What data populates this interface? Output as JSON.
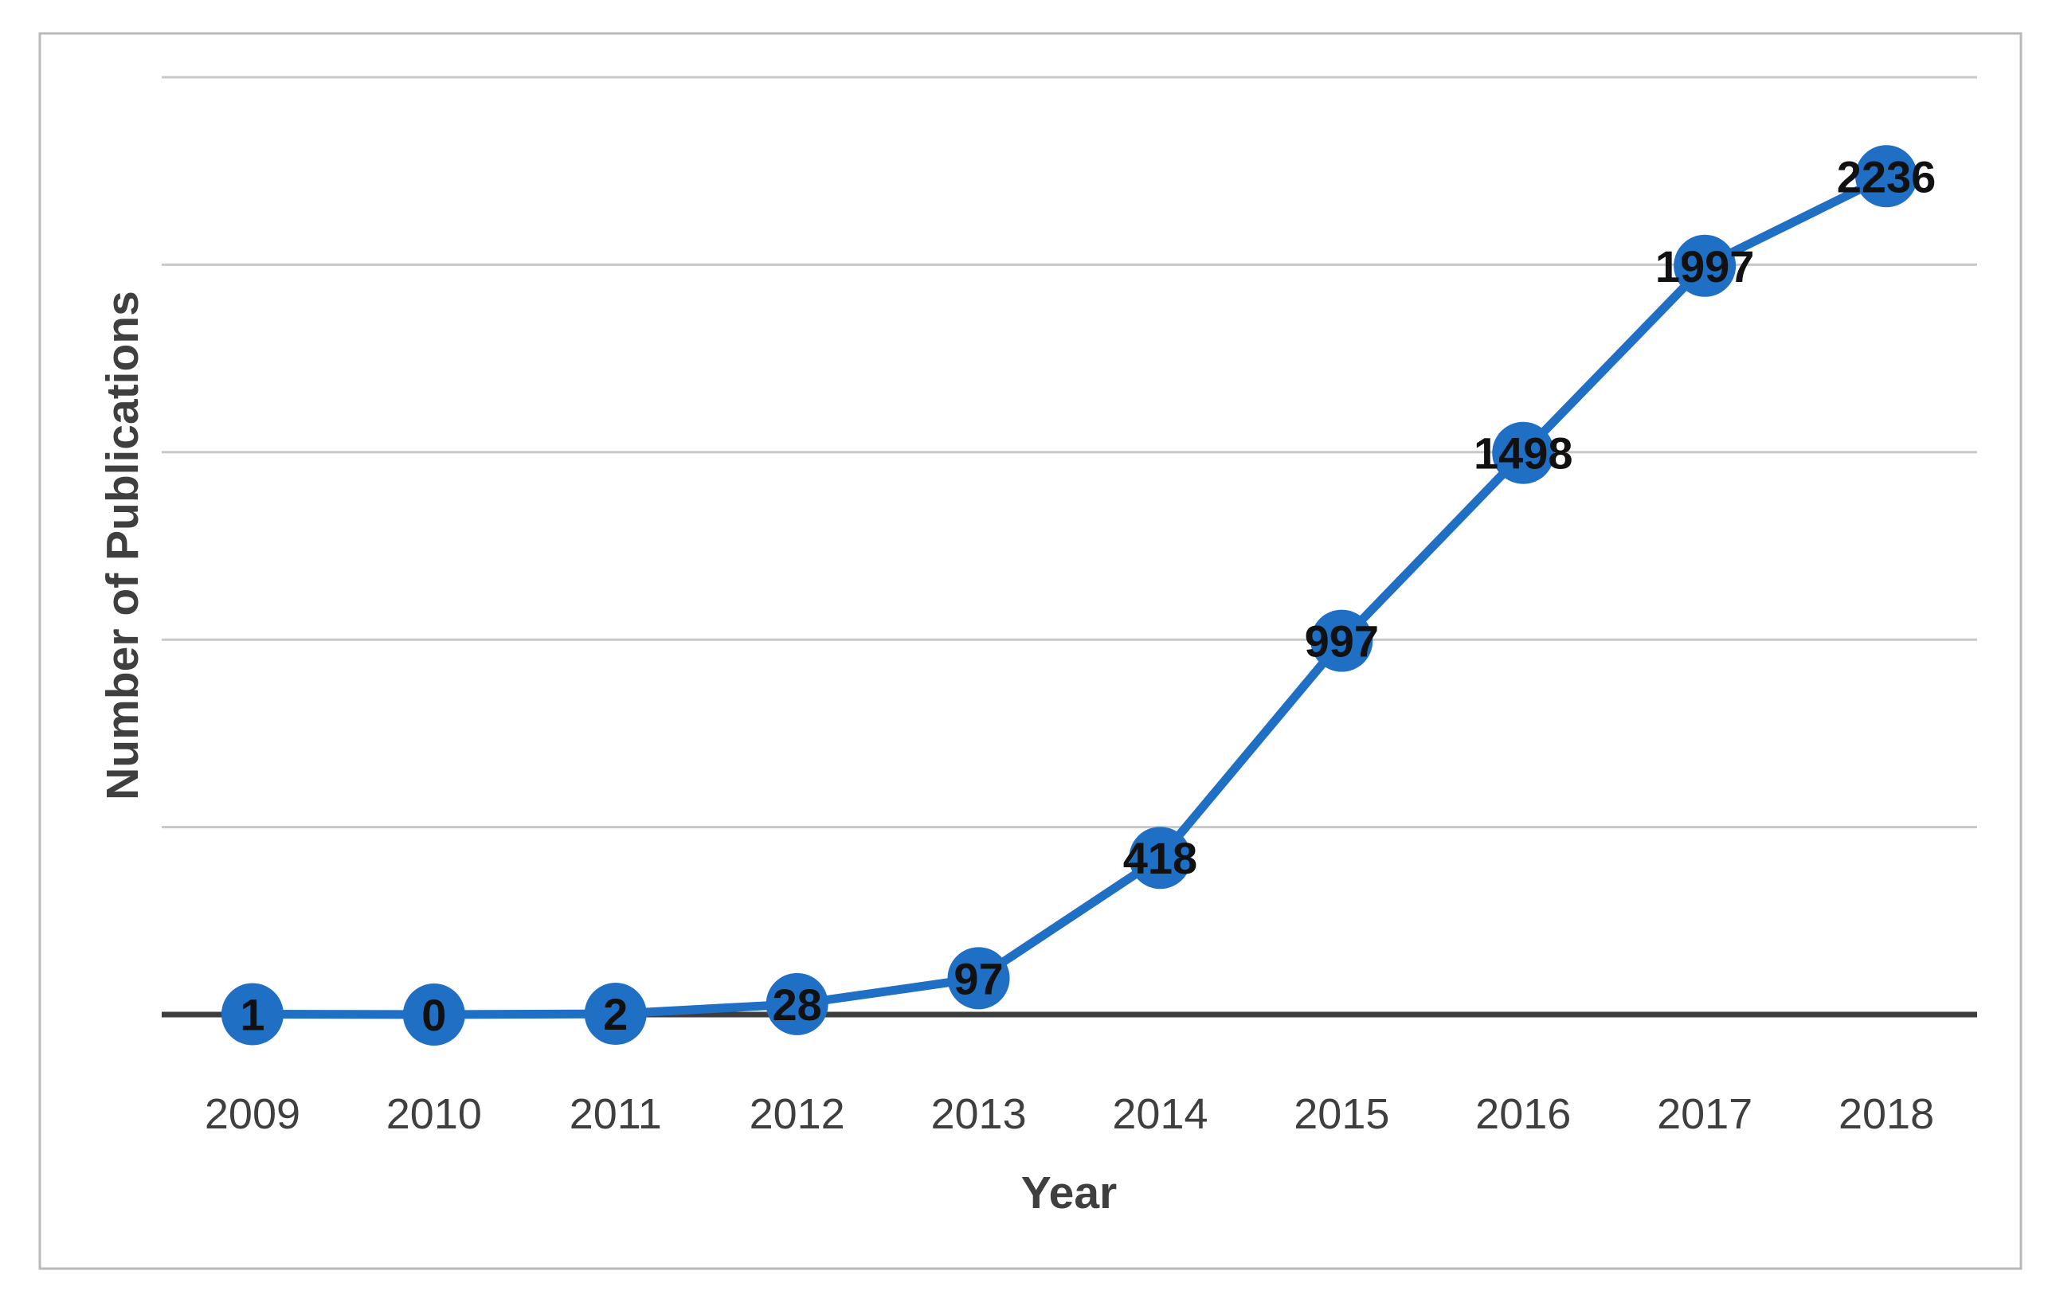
{
  "chart_data": {
    "type": "line",
    "title": "",
    "categories": [
      "2009",
      "2010",
      "2011",
      "2012",
      "2013",
      "2014",
      "2015",
      "2016",
      "2017",
      "2018"
    ],
    "values": [
      1,
      0,
      2,
      28,
      97,
      418,
      997,
      1498,
      1997,
      2236
    ],
    "data_labels": [
      "1",
      "0",
      "2",
      "28",
      "97",
      "418",
      "997",
      "1498",
      "1997",
      "2236"
    ],
    "data_label_position": "center-on-marker",
    "xlabel": "Year",
    "ylabel": "Number of Publications",
    "ylim": [
      0,
      2500
    ],
    "ytick_step": 500,
    "ytick_labels_visible": false,
    "grid": "horizontal-only",
    "legend": "none",
    "marker": "filled-circle"
  },
  "colors": {
    "series": "#1f6fc4",
    "data_label": "#111111",
    "axis_line": "#3d3d3d",
    "gridline": "#c8c8c8",
    "tick_text": "#3f3f3f",
    "border": "#b9b9b9",
    "background": "#ffffff"
  }
}
